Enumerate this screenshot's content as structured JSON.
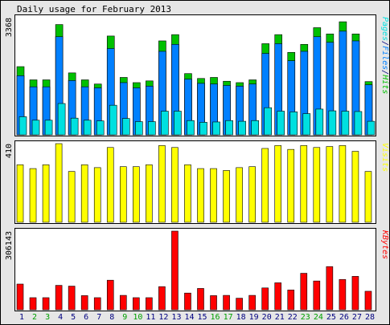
{
  "chart_data": {
    "type": "bar",
    "title": "Daily usage for February 2013",
    "categories": [
      "1",
      "2",
      "3",
      "4",
      "5",
      "6",
      "7",
      "8",
      "9",
      "10",
      "11",
      "12",
      "13",
      "14",
      "15",
      "16",
      "17",
      "18",
      "19",
      "20",
      "21",
      "22",
      "23",
      "24",
      "25",
      "26",
      "27",
      "28"
    ],
    "weekend_days": [
      2,
      3,
      9,
      10,
      16,
      17,
      23,
      24
    ],
    "panels": [
      {
        "name": "hits-files-pages",
        "ymax_label": "3368",
        "ylim": [
          0,
          3368
        ],
        "legend": [
          "Pages",
          "Files",
          "Hits"
        ],
        "legend_separator": "/",
        "series": [
          {
            "name": "Hits",
            "color": "#00c000",
            "values": [
              1960,
              1580,
              1580,
              3170,
              1780,
              1580,
              1460,
              2840,
              1650,
              1500,
              1550,
              2700,
              2880,
              1760,
              1620,
              1650,
              1540,
              1500,
              1580,
              2620,
              2880,
              2370,
              2600,
              3080,
              2900,
              3250,
              2900,
              1530
            ]
          },
          {
            "name": "Files",
            "color": "#0080ff",
            "values": [
              1700,
              1380,
              1380,
              2820,
              1560,
              1380,
              1350,
              2480,
              1500,
              1350,
              1400,
              2400,
              2600,
              1600,
              1480,
              1460,
              1420,
              1400,
              1460,
              2340,
              2620,
              2130,
              2400,
              2820,
              2660,
              2980,
              2700,
              1440
            ]
          },
          {
            "name": "Pages",
            "color": "#00e0e0",
            "values": [
              520,
              420,
              420,
              900,
              480,
              420,
              400,
              850,
              470,
              380,
              380,
              680,
              680,
              410,
              360,
              370,
              410,
              390,
              410,
              780,
              680,
              660,
              610,
              740,
              690,
              680,
              670,
              390
            ]
          }
        ]
      },
      {
        "name": "visits",
        "ymax_label": "410",
        "ylim": [
          0,
          410
        ],
        "legend": [
          "Visits"
        ],
        "series": [
          {
            "name": "Visits",
            "color": "#ffff00",
            "values": [
              300,
              280,
              300,
              410,
              265,
              300,
              285,
              390,
              290,
              290,
              300,
              400,
              390,
              300,
              280,
              280,
              270,
              285,
              290,
              385,
              400,
              380,
              400,
              390,
              395,
              400,
              370,
              265
            ]
          }
        ]
      },
      {
        "name": "kbytes",
        "ymax_label": "306143",
        "ylim": [
          0,
          306143
        ],
        "legend": [
          "KBytes"
        ],
        "series": [
          {
            "name": "KBytes",
            "color": "#ff0000",
            "values": [
              100000,
              47000,
              47000,
              95000,
              92000,
              55000,
              47000,
              115000,
              56000,
              47000,
              47000,
              90000,
              306143,
              65000,
              83000,
              55000,
              56000,
              45000,
              56000,
              85000,
              105000,
              77000,
              142000,
              112000,
              168000,
              118000,
              130000,
              72000
            ]
          }
        ]
      }
    ],
    "colors": {
      "background": "#e6e6e6",
      "plot_background": "#ffffff",
      "weekday_label": "#000080",
      "weekend_label": "#00a000",
      "hits": "#00c000",
      "files": "#0080ff",
      "pages": "#00e0e0",
      "visits": "#ffff00",
      "kbytes": "#ff0000"
    }
  }
}
